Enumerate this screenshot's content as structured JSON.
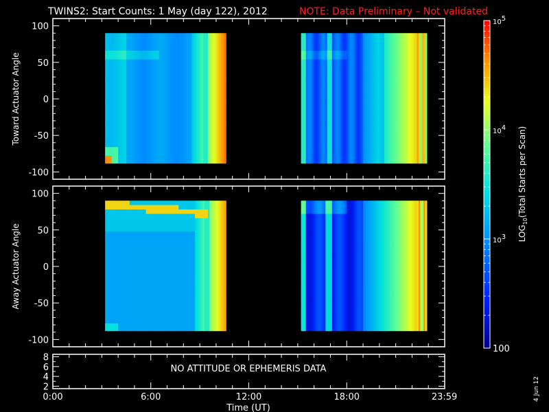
{
  "title": "TWINS2: Start Counts:  1 May (day 122), 2012",
  "note": "NOTE: Data Preliminary – Not validated",
  "panel_message": "NO ATTITUDE OR EPHEMERIS DATA",
  "date_stamp": "4 Jun 12",
  "colorbar": {
    "label": "LOG10(Total Starts per Scan)",
    "label_main": "LOG",
    "label_sub": "10",
    "label_rest": "(Total Starts per Scan)",
    "ticks": [
      {
        "value": 100,
        "label": "100"
      },
      {
        "value": 1000,
        "label_base": "10",
        "label_exp": "3"
      },
      {
        "value": 10000,
        "label_base": "10",
        "label_exp": "4"
      },
      {
        "value": 100000,
        "label_base": "10",
        "label_exp": "5"
      }
    ],
    "range": [
      100,
      100000
    ],
    "scale": "log"
  },
  "chart_data": [
    {
      "type": "heatmap",
      "name": "Toward panel",
      "ylabel": "Toward Actuator Angle",
      "ylim": [
        -110,
        110
      ],
      "yticks": [
        -100,
        -50,
        0,
        50,
        100
      ],
      "xlim": [
        0,
        24
      ],
      "data_segments_hours": [
        [
          3.2,
          10.6
        ],
        [
          15.2,
          22.9
        ]
      ],
      "angle_range": [
        -88,
        90
      ],
      "colormap": "rainbow",
      "cell_values_log10": {
        "segment1_summary": "mostly ~3.0 to 3.5, rising to ~4.6 near 10 h",
        "segment2_summary": "mostly ~2.6 to 3.3, rising to ~4.6 near 22–23 h"
      }
    },
    {
      "type": "heatmap",
      "name": "Away panel",
      "ylabel": "Away Actuator Angle",
      "ylim": [
        -110,
        110
      ],
      "yticks": [
        -100,
        -50,
        0,
        50,
        100
      ],
      "xlim": [
        0,
        24
      ],
      "data_segments_hours": [
        [
          3.2,
          10.6
        ],
        [
          15.2,
          22.9
        ]
      ],
      "angle_range": [
        -88,
        90
      ],
      "colormap": "rainbow",
      "cell_values_log10": {
        "segment1_summary": "~3.0 to 3.6 with a ~4.5 band near +75° early, ~4.4 near 10 h",
        "segment2_summary": "~2.4 to 3.2, rising to ~4.6 near 22–23 h"
      }
    },
    {
      "type": "line",
      "name": "Attitude panel",
      "ylim": [
        1.5,
        8.5
      ],
      "yticks": [
        2,
        4,
        6,
        8
      ],
      "series": []
    }
  ],
  "xaxis": {
    "label": "Time (UT)",
    "ticks": [
      {
        "hour": 0,
        "label": "0:00"
      },
      {
        "hour": 6,
        "label": "6:00"
      },
      {
        "hour": 12,
        "label": "12:00"
      },
      {
        "hour": 18,
        "label": "18:00"
      },
      {
        "hour": 23.983,
        "label": "23:59"
      }
    ]
  }
}
